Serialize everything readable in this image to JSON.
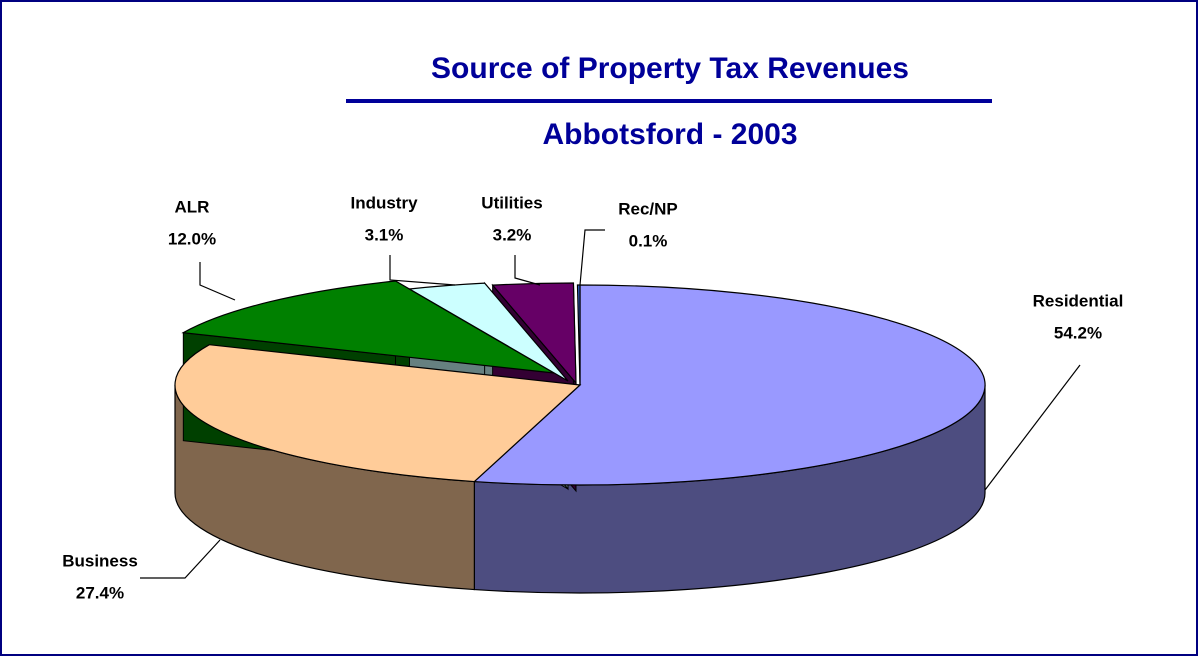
{
  "chart_data": {
    "type": "pie3d",
    "title": "Source of Property Tax Revenues",
    "subtitle": "Abbotsford - 2003",
    "categories": [
      "Residential",
      "Business",
      "ALR",
      "Industry",
      "Utilities",
      "Rec/NP"
    ],
    "values": [
      54.2,
      27.4,
      12.0,
      3.1,
      3.2,
      0.1
    ],
    "value_labels": [
      "54.2%",
      "27.4%",
      "12.0%",
      "3.1%",
      "3.2%",
      "0.1%"
    ],
    "colors": [
      "#9999ff",
      "#ffcc99",
      "#008000",
      "#ccffff",
      "#660066",
      "#3366cc"
    ]
  }
}
